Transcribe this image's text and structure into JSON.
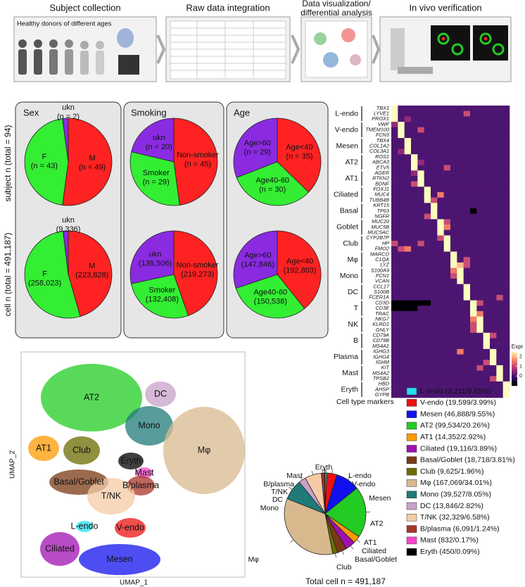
{
  "workflow": {
    "steps": [
      "Subject collection",
      "Raw data integration",
      [
        "Data visualization/",
        "differential analysis"
      ],
      "In vivo verification"
    ],
    "donors_label": "Healthy donors of different ages"
  },
  "pie_rows": [
    "subject n (total = 94)",
    "cell n (total = 491,187)"
  ],
  "chart_data": [
    {
      "type": "pie",
      "title": "Sex",
      "categories": [
        "M",
        "F",
        "ukn"
      ],
      "values": [
        49,
        43,
        2
      ],
      "value_labels": [
        "(n = 49)",
        "(n = 43)",
        "(n = 2)"
      ],
      "colors": [
        "#ff2222",
        "#33ee33",
        "#8a2be2"
      ]
    },
    {
      "type": "pie",
      "title": "Smoking",
      "categories": [
        "Non-smoker",
        "Smoker",
        "ukn"
      ],
      "values": [
        45,
        29,
        20
      ],
      "value_labels": [
        "(n = 45)",
        "(n = 29)",
        "(n = 20)"
      ],
      "colors": [
        "#ff2222",
        "#33ee33",
        "#8a2be2"
      ]
    },
    {
      "type": "pie",
      "title": "Age",
      "categories": [
        "Age<40",
        "Age40-60",
        "Age>60"
      ],
      "values": [
        35,
        30,
        29
      ],
      "value_labels": [
        "(n = 35)",
        "(n = 30)",
        "(n = 29)"
      ],
      "colors": [
        "#ff2222",
        "#33ee33",
        "#8a2be2"
      ]
    },
    {
      "type": "pie",
      "categories": [
        "M",
        "F",
        "ukn"
      ],
      "values": [
        223828,
        258023,
        9336
      ],
      "value_labels": [
        "(223,828)",
        "(258,023)",
        "(9,336)"
      ],
      "colors": [
        "#ff2222",
        "#33ee33",
        "#8a2be2"
      ]
    },
    {
      "type": "pie",
      "categories": [
        "Non-smoker",
        "Smoker",
        "ukn"
      ],
      "values": [
        219273,
        132408,
        139506
      ],
      "value_labels": [
        "(219,273)",
        "(132,408)",
        "(139,506)"
      ],
      "colors": [
        "#ff2222",
        "#33ee33",
        "#8a2be2"
      ]
    },
    {
      "type": "pie",
      "categories": [
        "Age<40",
        "Age40-60",
        "Age>60"
      ],
      "values": [
        192803,
        150538,
        147846
      ],
      "value_labels": [
        "(192,803)",
        "(150,538)",
        "(147,846)"
      ],
      "colors": [
        "#ff2222",
        "#33ee33",
        "#8a2be2"
      ]
    },
    {
      "type": "heatmap",
      "x_label": "Cell type markers",
      "colorbar_label": "Expr",
      "zlim": [
        -1,
        2.5
      ],
      "zticks": [
        0,
        1,
        2
      ],
      "groups": [
        "L-endo",
        "V-endo",
        "Mesen",
        "AT2",
        "AT1",
        "Ciliated",
        "Basal",
        "Goblet",
        "Club",
        "Mφ",
        "Mono",
        "DC",
        "T",
        "NK",
        "B",
        "Plasma",
        "Mast",
        "Eryth"
      ],
      "genes": [
        "TBX1",
        "LYVE1",
        "PROX1",
        "VWF",
        "TMEM100",
        "FCN3",
        "TBX4",
        "COL1A2",
        "COL3A1",
        "ROS1",
        "ABCA3",
        "ETV5",
        "AGER",
        "RTKN2",
        "BDNF",
        "FOXJ1",
        "MUC4",
        "TUBB4B",
        "KRT15",
        "TP63",
        "NGFR",
        "MUC20",
        "MUC5B",
        "MUC5AC",
        "CYP2B7P",
        "HP",
        "FMO2",
        "MARCO",
        "C1QA",
        "LYZ",
        "S100A9",
        "FCN1",
        "VCAN",
        "CCL17",
        "S100B",
        "FCER1A",
        "CD3D",
        "CD3E",
        "TRAC",
        "NKG7",
        "KLRD1",
        "GNLY",
        "CD79A",
        "CD79B",
        "MS4A1",
        "IGHG3",
        "IGHG4",
        "IGHM",
        "KIT",
        "MS4A2",
        "TPSB2",
        "HBD",
        "AHSP",
        "GYPB"
      ],
      "values": [
        [
          2.5,
          0,
          0,
          0,
          0,
          0,
          0,
          0,
          0,
          0,
          0,
          0,
          0,
          0,
          0,
          0,
          0,
          0
        ],
        [
          2.5,
          0,
          0,
          0,
          0,
          0,
          0,
          0,
          0,
          0,
          0,
          1,
          0,
          0,
          0,
          0,
          0,
          0
        ],
        [
          2.5,
          0,
          0.5,
          0,
          0,
          0,
          0,
          0,
          0,
          0,
          0,
          0,
          0,
          0,
          0,
          0,
          0,
          0
        ],
        [
          0.5,
          2.5,
          0,
          0,
          0,
          0,
          0,
          0,
          0,
          0,
          0,
          0,
          0,
          0,
          0,
          0,
          0,
          0
        ],
        [
          0,
          2.5,
          0,
          0,
          1,
          0,
          0,
          0,
          0,
          0,
          0,
          0,
          0,
          0,
          0,
          0,
          0,
          0
        ],
        [
          0,
          2.5,
          0,
          0,
          0,
          0,
          0,
          0,
          0,
          0,
          0,
          0,
          0,
          0,
          0,
          0,
          0,
          0
        ],
        [
          0,
          0,
          2.5,
          0,
          0,
          0,
          0,
          0,
          0,
          0,
          0,
          0,
          0,
          0,
          0,
          0,
          0,
          0
        ],
        [
          0,
          0,
          2.5,
          0,
          0,
          0,
          0,
          0,
          0,
          0,
          0,
          0,
          0,
          0,
          0,
          0,
          0,
          0
        ],
        [
          0,
          0.5,
          2.5,
          0,
          0,
          0,
          0,
          0,
          0,
          0,
          0,
          0,
          0,
          0,
          0,
          0,
          0,
          0
        ],
        [
          0,
          0,
          0,
          2.5,
          0,
          0,
          0,
          0,
          0,
          0,
          0,
          0,
          0,
          0,
          0,
          0,
          0,
          0
        ],
        [
          0,
          0,
          0,
          2.5,
          0.5,
          0,
          0,
          0,
          0,
          0,
          0,
          0,
          0,
          0,
          0,
          0,
          0,
          0
        ],
        [
          0,
          0,
          0,
          2.5,
          0,
          0,
          0,
          0,
          1,
          0,
          0,
          0,
          0,
          0,
          0,
          0,
          0,
          0
        ],
        [
          0,
          0,
          0,
          0.5,
          2.5,
          0,
          0,
          0,
          0,
          0,
          0,
          0,
          0,
          0,
          0,
          0,
          0,
          0
        ],
        [
          0,
          0,
          0,
          0,
          2.5,
          0,
          0,
          0,
          0,
          0,
          0,
          0,
          0,
          0,
          0,
          0,
          0,
          0
        ],
        [
          0,
          0,
          0,
          1,
          2.5,
          0,
          0,
          0,
          0,
          0,
          0,
          0,
          0,
          0,
          0,
          0,
          0,
          0
        ],
        [
          0,
          0,
          0,
          0,
          0,
          2.5,
          0,
          0,
          0,
          0,
          0,
          0,
          0,
          0,
          0,
          0,
          0,
          0
        ],
        [
          0,
          0,
          0,
          0,
          0,
          2.5,
          0,
          1.5,
          0,
          0,
          0,
          0,
          0,
          0,
          0,
          0,
          0,
          0
        ],
        [
          0,
          0,
          0,
          0,
          0,
          2.5,
          1,
          0,
          0,
          0,
          0,
          0,
          0,
          0,
          0,
          0,
          0,
          0
        ],
        [
          0,
          0,
          0,
          0,
          0,
          0,
          2.5,
          0,
          0,
          0,
          0,
          0,
          0,
          0,
          0,
          0,
          0,
          0
        ],
        [
          0,
          0,
          0,
          0,
          0,
          0,
          2.5,
          0,
          0,
          0,
          0,
          0,
          -1,
          0,
          0,
          0,
          0,
          0
        ],
        [
          0,
          0,
          0,
          0,
          0,
          1,
          2.5,
          0,
          0,
          0,
          0,
          0,
          0,
          0,
          0,
          0,
          0,
          0
        ],
        [
          0,
          0,
          0,
          0,
          0,
          0,
          0,
          2.5,
          1,
          0,
          0,
          0,
          0,
          0,
          0,
          0,
          0,
          0
        ],
        [
          0,
          0,
          0,
          0,
          0,
          0,
          0,
          2.5,
          1.5,
          0,
          0,
          0,
          0,
          0,
          0,
          0,
          0,
          0
        ],
        [
          0,
          0,
          0,
          0,
          0,
          0,
          0,
          2.5,
          0,
          0,
          0,
          0,
          0,
          0,
          0,
          0,
          0,
          0
        ],
        [
          0,
          0,
          0,
          0,
          0,
          0,
          0,
          1,
          2.5,
          0,
          0,
          0,
          0,
          0,
          0,
          0,
          0,
          0
        ],
        [
          1,
          0,
          0,
          0,
          1,
          0,
          0,
          0,
          2.5,
          0,
          0,
          0,
          0,
          0,
          0,
          0,
          0,
          0
        ],
        [
          0,
          1,
          1.5,
          0,
          0,
          0,
          0,
          0,
          2.5,
          0,
          0,
          0,
          0,
          0,
          0,
          0,
          0,
          0
        ],
        [
          0,
          0,
          0,
          0,
          0,
          0,
          0,
          0,
          0,
          2.5,
          0,
          0,
          0,
          0,
          0,
          0,
          0,
          0
        ],
        [
          0,
          0,
          0,
          0,
          0,
          0,
          0,
          0,
          0,
          2.5,
          0,
          1,
          0,
          0,
          0,
          0,
          0,
          0
        ],
        [
          0,
          0,
          0,
          0,
          0,
          0,
          0,
          0,
          0,
          2.5,
          2,
          1,
          0,
          0,
          0,
          0,
          0,
          0
        ],
        [
          0,
          0,
          0,
          0,
          0,
          0,
          0,
          0,
          0,
          1.5,
          2.5,
          0,
          0,
          0,
          0,
          0,
          0,
          0
        ],
        [
          0,
          0,
          0,
          0,
          0,
          0,
          0,
          0,
          0,
          1,
          2.5,
          0,
          0,
          0,
          0,
          0,
          0,
          0
        ],
        [
          0,
          0,
          0,
          0,
          0,
          0,
          0,
          0,
          0,
          0,
          2.5,
          0,
          0,
          0,
          0,
          0,
          0,
          0
        ],
        [
          0,
          0,
          0,
          0,
          0,
          0,
          0,
          0,
          0,
          0,
          0,
          2.5,
          0,
          0,
          0,
          0,
          0,
          0
        ],
        [
          0,
          0,
          0,
          0,
          0,
          0,
          0,
          0,
          0,
          0,
          0,
          2.5,
          0,
          0,
          0,
          0,
          0,
          0
        ],
        [
          0,
          0,
          0,
          0,
          0,
          0,
          0,
          0,
          0,
          0,
          0,
          2.5,
          0,
          0,
          0,
          0,
          1,
          0
        ],
        [
          -1,
          -1,
          -1,
          -1,
          -1,
          -1,
          0,
          0,
          0,
          0,
          0,
          0,
          2.5,
          1,
          0,
          0,
          0,
          0
        ],
        [
          -1,
          -1,
          -1,
          -1,
          0,
          0,
          0,
          0,
          0,
          0,
          0,
          0,
          2.5,
          0,
          0,
          0,
          0,
          0
        ],
        [
          0,
          0,
          0,
          0,
          0,
          0,
          0,
          0,
          0,
          0,
          0,
          0,
          2.5,
          1.5,
          0,
          0,
          0,
          0
        ],
        [
          0,
          0,
          0,
          0,
          0,
          0,
          0,
          0,
          0,
          0,
          0,
          0,
          1.5,
          2.5,
          0,
          0,
          0,
          0
        ],
        [
          0,
          0,
          0,
          0,
          0,
          0,
          0,
          0,
          0,
          0,
          0,
          0,
          1,
          2.5,
          0,
          0,
          0,
          0
        ],
        [
          0,
          0,
          0,
          0,
          0,
          0,
          0,
          0,
          0,
          0,
          0,
          0,
          1,
          2.5,
          0,
          0,
          0,
          0
        ],
        [
          0,
          0,
          0,
          0,
          0,
          0,
          0,
          0,
          0,
          0,
          0,
          0,
          0,
          0,
          2.5,
          1,
          0,
          0
        ],
        [
          0,
          0,
          0,
          0,
          0,
          0,
          0,
          0,
          0,
          0,
          0,
          0,
          0,
          0,
          2.5,
          0,
          0,
          0
        ],
        [
          0,
          0,
          0,
          0,
          0,
          0,
          0,
          0,
          0,
          0,
          0,
          0,
          0,
          0,
          2.5,
          0,
          0,
          0
        ],
        [
          0,
          0,
          0,
          0,
          0,
          0,
          0,
          0,
          0,
          0,
          1.5,
          0,
          0,
          0,
          0,
          2.5,
          0,
          0
        ],
        [
          0,
          0,
          0,
          0,
          0,
          0,
          0,
          0,
          0,
          0,
          0,
          0,
          0,
          0,
          0,
          2.5,
          0,
          0
        ],
        [
          0,
          0,
          0,
          0,
          0,
          0,
          0,
          0,
          0,
          0,
          0,
          0,
          0,
          0,
          1,
          2.5,
          0,
          0
        ],
        [
          0,
          0,
          0,
          0,
          0,
          0,
          0,
          0,
          0,
          0,
          0,
          0,
          0,
          1,
          0,
          0,
          2.5,
          0
        ],
        [
          0,
          0,
          0,
          0,
          0,
          0,
          0,
          0,
          0,
          0,
          0,
          0,
          0,
          0,
          0,
          0,
          2.5,
          0
        ],
        [
          0,
          0,
          0,
          0,
          0,
          0,
          0,
          0,
          0,
          0,
          0,
          0,
          0,
          0,
          0,
          1,
          2.5,
          0
        ],
        [
          0,
          0,
          0,
          0,
          0,
          0,
          0,
          0,
          0,
          0,
          0,
          0,
          0,
          0,
          0,
          0,
          0,
          2.5
        ],
        [
          0,
          0,
          0,
          0,
          0,
          0,
          0,
          0,
          0,
          0,
          0,
          0,
          0,
          0,
          0,
          0,
          0,
          2.5
        ],
        [
          0,
          0,
          0,
          0,
          0,
          0,
          0,
          0,
          0,
          0,
          0,
          0,
          0,
          0,
          0,
          0,
          0,
          2.5
        ]
      ]
    },
    {
      "type": "umap",
      "x_label": "UMAP_1",
      "y_label": "UMAP_2",
      "clusters": [
        "AT2",
        "DC",
        "AT1",
        "Club",
        "Mono",
        "Eryth",
        "Mast",
        "Basal/Goblet",
        "B/plasma",
        "Mφ",
        "T/NK",
        "L-endo",
        "V-endo",
        "Ciliated",
        "Mesen"
      ]
    },
    {
      "type": "pie",
      "title": "Total cell n = 491,187",
      "categories": [
        "L-endo",
        "V-endo",
        "Mesen",
        "AT2",
        "AT1",
        "Ciliated",
        "Basal/Goblet",
        "Club",
        "Mφ",
        "Mono",
        "DC",
        "T/NK",
        "B/plasma",
        "Mast",
        "Eryth"
      ],
      "values": [
        3211,
        19599,
        46888,
        99534,
        14352,
        19116,
        18718,
        9625,
        167069,
        39527,
        13846,
        32329,
        6091,
        832,
        450
      ],
      "value_labels": [
        "L-endo (3,211/0.65%)",
        "V-endo (19,599/3.99%)",
        "Mesen (46,888/9.55%)",
        "AT2 (99,534/20.26%)",
        "AT1 (14,352/2.92%)",
        "Ciliated (19,116/3.89%)",
        "Basal/Goblet (18,718/3.81%)",
        "Club (9,625/1.96%)",
        "Mφ (167,069/34.01%)",
        "Mono (39,527/8.05%)",
        "DC (13,846/2.82%)",
        "T/NK (32,329/6.58%)",
        "B/plasma (6,091/1.24%)",
        "Mast (832/0.17%)",
        "Eryth (450/0.09%)"
      ],
      "colors": [
        "#22e0ee",
        "#ee1111",
        "#1111ee",
        "#22cc22",
        "#ff9a00",
        "#a010b0",
        "#7a3a14",
        "#6b6b00",
        "#d8b98e",
        "#1f7a78",
        "#c8a2c8",
        "#f5cba7",
        "#a8342a",
        "#ff44cc",
        "#000000"
      ]
    }
  ]
}
